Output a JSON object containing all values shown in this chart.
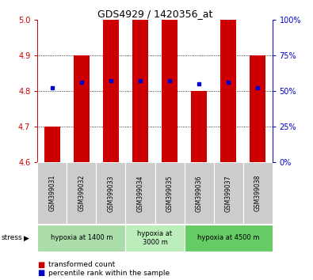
{
  "title": "GDS4929 / 1420356_at",
  "samples": [
    "GSM399031",
    "GSM399032",
    "GSM399033",
    "GSM399034",
    "GSM399035",
    "GSM399036",
    "GSM399037",
    "GSM399038"
  ],
  "bar_bottom": 4.6,
  "bar_top": [
    4.7,
    4.9,
    5.0,
    5.0,
    5.0,
    4.8,
    5.0,
    4.9
  ],
  "percentile_y": [
    4.81,
    4.825,
    4.83,
    4.83,
    4.83,
    4.82,
    4.825,
    4.81
  ],
  "ylim": [
    4.6,
    5.0
  ],
  "yticks": [
    4.6,
    4.7,
    4.8,
    4.9,
    5.0
  ],
  "right_yticks": [
    0,
    25,
    50,
    75,
    100
  ],
  "bar_color": "#cc0000",
  "percentile_color": "#0000cc",
  "bar_width": 0.55,
  "groups": [
    {
      "label": "hypoxia at 1400 m",
      "start": 0,
      "end": 2,
      "color": "#aaddaa"
    },
    {
      "label": "hypoxia at\n3000 m",
      "start": 3,
      "end": 4,
      "color": "#bbeebb"
    },
    {
      "label": "hypoxia at 4500 m",
      "start": 5,
      "end": 7,
      "color": "#66cc66"
    }
  ],
  "stress_label": "stress",
  "legend_items": [
    {
      "color": "#cc0000",
      "label": "transformed count"
    },
    {
      "color": "#0000cc",
      "label": "percentile rank within the sample"
    }
  ],
  "bg_color": "#ffffff",
  "ylabel_color": "#cc0000",
  "ylabel2_color": "#0000cc",
  "xticklabel_bg": "#cccccc",
  "title_fontsize": 9,
  "tick_fontsize": 7,
  "label_fontsize": 5.5,
  "group_fontsize": 6,
  "legend_fontsize": 6.5
}
